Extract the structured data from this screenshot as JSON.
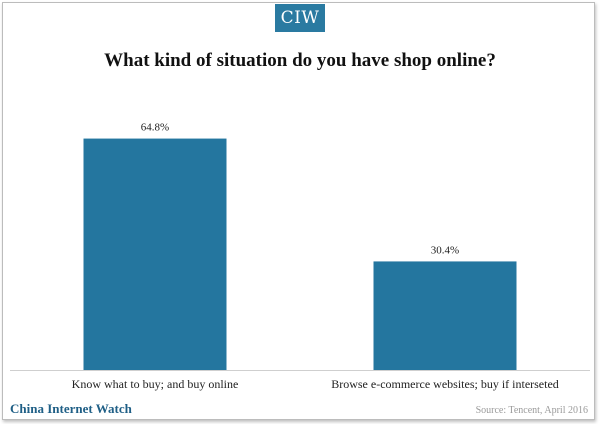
{
  "logo": {
    "text": "CIW"
  },
  "footer": {
    "brand": "China Internet Watch",
    "source": "Source: Tencent, April 2016"
  },
  "colors": {
    "bar": "#24769f",
    "logo_bg": "#2a7aa1",
    "brand": "#1f5f86"
  },
  "chart_data": {
    "type": "bar",
    "title": "What kind of situation do you have shop online?",
    "xlabel": "",
    "ylabel": "",
    "categories": [
      "Know what to buy; and buy online",
      "Browse e-commerce websites; buy if interseted"
    ],
    "values": [
      64.8,
      30.4
    ],
    "value_labels": [
      "64.8%",
      "30.4%"
    ],
    "ylim": [
      0,
      70
    ],
    "grid": false,
    "legend": "none"
  }
}
